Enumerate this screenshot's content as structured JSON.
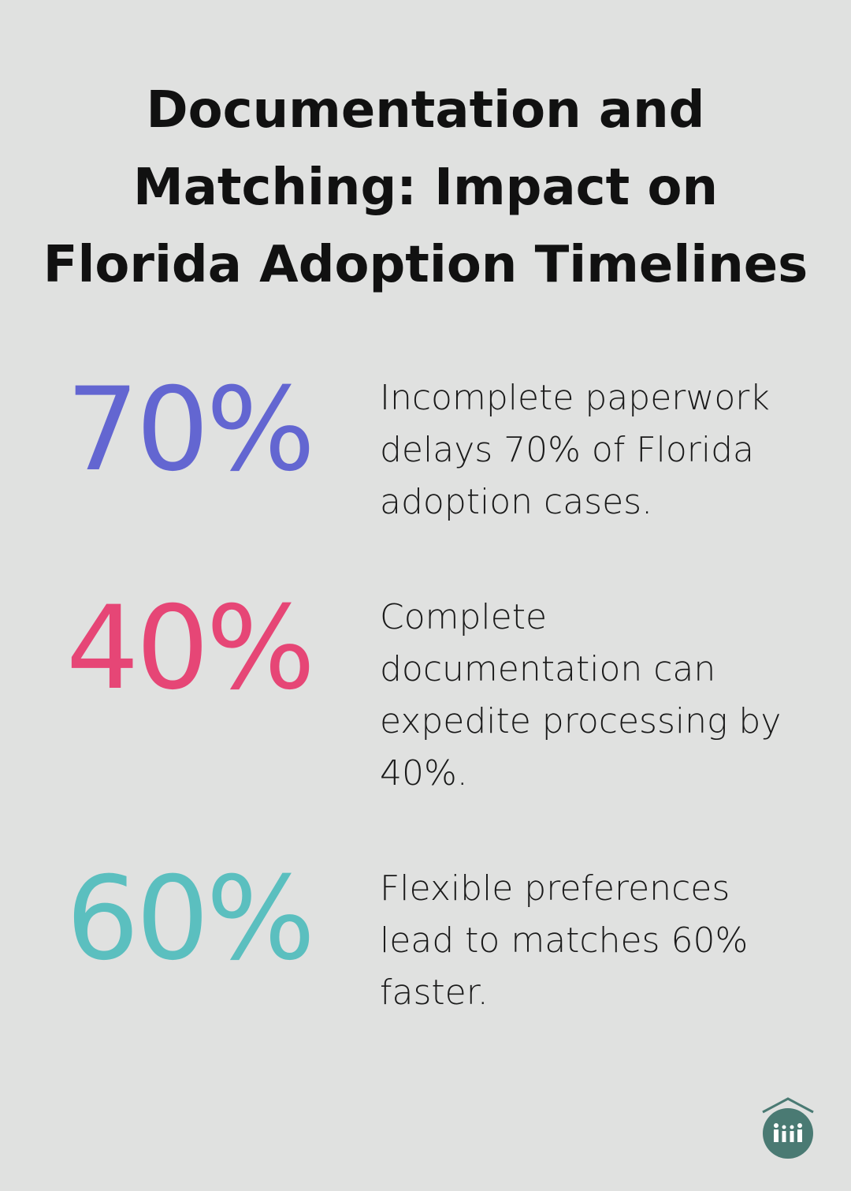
{
  "header": {
    "title_lines": [
      "Documentation and",
      "Matching: Impact on",
      "Florida Adoption Timelines"
    ]
  },
  "stats": [
    {
      "value": "70%",
      "text": "Incomplete paperwork delays 70% of Florida adoption cases.",
      "color": "#6366d1"
    },
    {
      "value": "40%",
      "text": "Complete documentation can expedite processing by 40%.",
      "color": "#e64676"
    },
    {
      "value": "60%",
      "text": "Flexible preferences lead to matches 60% faster.",
      "color": "#5bbfbf"
    }
  ]
}
